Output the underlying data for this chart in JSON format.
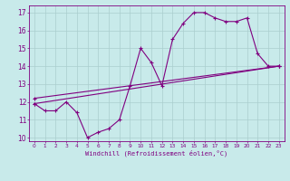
{
  "xlabel": "Windchill (Refroidissement éolien,°C)",
  "bg_color": "#c8eaea",
  "line_color": "#800080",
  "grid_color": "#aacece",
  "xlim": [
    -0.5,
    23.5
  ],
  "ylim": [
    9.8,
    17.4
  ],
  "xticks": [
    0,
    1,
    2,
    3,
    4,
    5,
    6,
    7,
    8,
    9,
    10,
    11,
    12,
    13,
    14,
    15,
    16,
    17,
    18,
    19,
    20,
    21,
    22,
    23
  ],
  "yticks": [
    10,
    11,
    12,
    13,
    14,
    15,
    16,
    17
  ],
  "series1_x": [
    0,
    1,
    2,
    3,
    4,
    5,
    6,
    7,
    8,
    9,
    10,
    11,
    12,
    13,
    14,
    15,
    16,
    17,
    18,
    19,
    20,
    21,
    22,
    23
  ],
  "series1_y": [
    11.9,
    11.5,
    11.5,
    12.0,
    11.4,
    10.0,
    10.3,
    10.5,
    11.0,
    12.9,
    15.0,
    14.2,
    12.9,
    15.5,
    16.4,
    17.0,
    17.0,
    16.7,
    16.5,
    16.5,
    16.7,
    14.7,
    14.0,
    14.0
  ],
  "series2_x": [
    0,
    23
  ],
  "series2_y": [
    11.9,
    14.0
  ],
  "series3_x": [
    0,
    23
  ],
  "series3_y": [
    12.2,
    14.0
  ]
}
